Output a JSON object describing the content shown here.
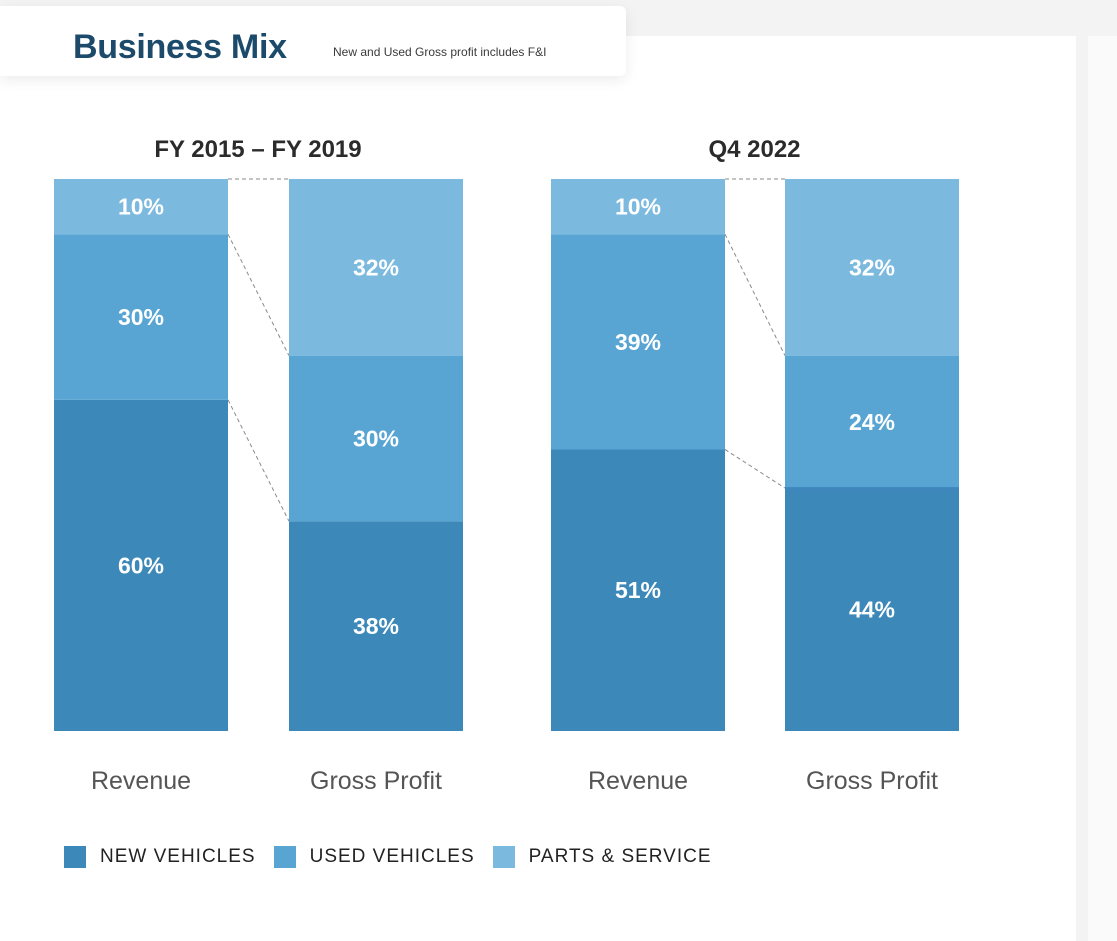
{
  "header": {
    "title": "Business Mix",
    "subtitle": "New and Used Gross profit includes F&I"
  },
  "colors": {
    "new_vehicles": "#3c88b9",
    "used_vehicles": "#58a5d4",
    "parts_service": "#7cb9de",
    "gp_new_vehicles_q4": "#3d87bd"
  },
  "chart_data": [
    {
      "type": "bar",
      "stacked": true,
      "title": "FY 2015 – FY 2019",
      "categories": [
        "Revenue",
        "Gross Profit"
      ],
      "series": [
        {
          "name": "NEW VEHICLES",
          "values": [
            60,
            38
          ]
        },
        {
          "name": "USED VEHICLES",
          "values": [
            30,
            30
          ]
        },
        {
          "name": "PARTS & SERVICE",
          "values": [
            10,
            32
          ]
        }
      ],
      "labels": [
        [
          "60%",
          "30%",
          "10%"
        ],
        [
          "38%",
          "30%",
          "32%"
        ]
      ],
      "unit": "%"
    },
    {
      "type": "bar",
      "stacked": true,
      "title": "Q4 2022",
      "categories": [
        "Revenue",
        "Gross Profit"
      ],
      "series": [
        {
          "name": "NEW VEHICLES",
          "values": [
            51,
            44
          ]
        },
        {
          "name": "USED VEHICLES",
          "values": [
            39,
            24
          ]
        },
        {
          "name": "PARTS & SERVICE",
          "values": [
            10,
            32
          ]
        }
      ],
      "labels": [
        [
          "51%",
          "39%",
          "10%"
        ],
        [
          "44%",
          "24%",
          "32%"
        ]
      ],
      "unit": "%"
    }
  ],
  "legend": {
    "items": [
      {
        "label": "NEW VEHICLES",
        "color": "#3c88b9"
      },
      {
        "label": "USED VEHICLES",
        "color": "#58a5d4"
      },
      {
        "label": "PARTS & SERVICE",
        "color": "#7cb9de"
      }
    ],
    "position": "bottom-left"
  }
}
